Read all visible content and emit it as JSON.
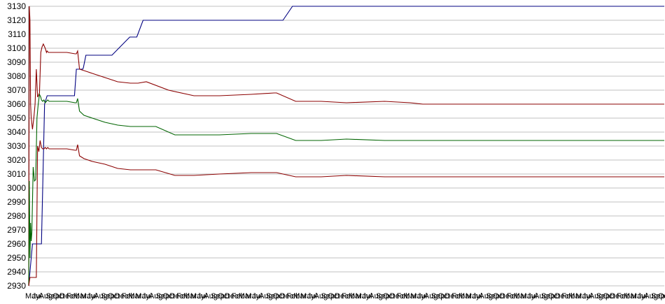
{
  "chart_data": {
    "type": "line",
    "title": "",
    "xlabel": "",
    "ylabel": "",
    "ylim": [
      2930,
      3130
    ],
    "yticks": [
      2930,
      2940,
      2950,
      2960,
      2970,
      2980,
      2990,
      3000,
      3010,
      3020,
      3030,
      3040,
      3050,
      3060,
      3070,
      3080,
      3090,
      3100,
      3110,
      3120,
      3130
    ],
    "grid": true,
    "legend": "none",
    "x_tick_labels": [
      "May",
      "Jul",
      "Aug",
      "Sep",
      "Oct",
      "Dec",
      "Feb",
      "Mar",
      "May",
      "Jul",
      "Aug",
      "Sep",
      "Oct",
      "Dec",
      "Feb",
      "Mar",
      "May",
      "Jul",
      "Aug",
      "Sep",
      "Oct",
      "Dec",
      "Feb",
      "Mar",
      "May",
      "Jul",
      "Aug",
      "Sep",
      "Oct",
      "Dec",
      "Feb",
      "Mar",
      "May",
      "Jul",
      "Aug",
      "Sep",
      "Oct",
      "Dec",
      "Feb",
      "Mar",
      "May",
      "Jul",
      "Aug",
      "Sep",
      "Oct",
      "Dec",
      "Feb",
      "Mar",
      "May",
      "Jul",
      "Aug",
      "Sep",
      "Oct",
      "Dec",
      "Feb",
      "Mar",
      "May",
      "Jul",
      "Aug",
      "Sep",
      "Oct",
      "Dec",
      "Feb",
      "Mar",
      "May",
      "Jul",
      "Aug",
      "Sep",
      "Oct",
      "Dec",
      "Feb",
      "Mar",
      "May",
      "Jul",
      "Aug",
      "Sep",
      "Oct",
      "Dec",
      "Feb",
      "Mar",
      "May",
      "Jul",
      "Aug",
      "Sep",
      "Oct",
      "Dec",
      "Feb",
      "Mar",
      "May",
      "Jul",
      "Aug",
      "Sep",
      "Oct"
    ],
    "series": [
      {
        "color": "#000080",
        "x": [
          0,
          2,
          4,
          6,
          7,
          9,
          10,
          12,
          16,
          20,
          25,
          29,
          35,
          40,
          51,
          52,
          56,
          72,
          75,
          76,
          77,
          80,
          81,
          85,
          86,
          90,
          100,
          131,
          159,
          170,
          180,
          190,
          200,
          280,
          300,
          400,
          415,
          430,
          700,
          741,
          790,
          900,
          1000
        ],
        "y": [
          2930,
          2940,
          2950,
          2960,
          2960,
          2960,
          2960,
          2960,
          2960,
          2960,
          3060,
          3066,
          3066,
          3066,
          3066,
          3066,
          3066,
          3066,
          3085,
          3085,
          3085,
          3085,
          3085,
          3085,
          3086,
          3095,
          3095,
          3095,
          3108,
          3108,
          3120,
          3120,
          3120,
          3120,
          3120,
          3120,
          3130,
          3130,
          3130,
          3130,
          3130,
          3130,
          3130
        ]
      },
      {
        "color": "#8b0000",
        "x": [
          0,
          1,
          2,
          3,
          4,
          6,
          8,
          10,
          12,
          14,
          17,
          19,
          21,
          23,
          26,
          28,
          29,
          31,
          34,
          40,
          60,
          73,
          75,
          77,
          80,
          87,
          100,
          120,
          140,
          160,
          172,
          185,
          220,
          260,
          300,
          350,
          386,
          390,
          420,
          460,
          500,
          560,
          600,
          620,
          650,
          720,
          750,
          760,
          790,
          800,
          820,
          850,
          900,
          920,
          950,
          1000
        ],
        "y": [
          2930,
          3130,
          3120,
          3060,
          3050,
          3042,
          3050,
          3060,
          3085,
          3065,
          3068,
          3097,
          3101,
          3103,
          3100,
          3097,
          3098,
          3097,
          3097,
          3097,
          3097,
          3096,
          3096,
          3098,
          3085,
          3084,
          3082,
          3079,
          3076,
          3075,
          3075,
          3076,
          3070,
          3066,
          3066,
          3067,
          3068,
          3068,
          3062,
          3062,
          3061,
          3062,
          3061,
          3060,
          3060,
          3060,
          3060,
          3060,
          3060,
          3060,
          3060,
          3060,
          3060,
          3060,
          3060,
          3060
        ]
      },
      {
        "color": "#006400",
        "x": [
          0,
          1,
          2,
          3,
          4,
          5,
          7,
          9,
          11,
          13,
          15,
          17,
          19,
          20,
          22,
          24,
          26,
          28,
          30,
          32,
          40,
          60,
          73,
          75,
          77,
          80,
          87,
          100,
          120,
          140,
          160,
          172,
          185,
          200,
          230,
          260,
          300,
          350,
          386,
          390,
          420,
          460,
          500,
          560,
          600,
          620,
          650,
          720,
          750,
          800,
          850,
          900,
          950,
          1000
        ],
        "y": [
          2930,
          3005,
          2950,
          2975,
          2962,
          2968,
          3015,
          3005,
          3006,
          3050,
          3060,
          3067,
          3065,
          3063,
          3062,
          3063,
          3061,
          3062,
          3063,
          3062,
          3062,
          3062,
          3061,
          3061,
          3064,
          3055,
          3052,
          3050,
          3047,
          3045,
          3044,
          3044,
          3044,
          3044,
          3038,
          3038,
          3038,
          3039,
          3039,
          3039,
          3034,
          3034,
          3035,
          3034,
          3034,
          3034,
          3034,
          3034,
          3034,
          3034,
          3034,
          3034,
          3034,
          3034
        ]
      },
      {
        "color": "#8b0000",
        "x": [
          0,
          2,
          4,
          5,
          6,
          8,
          10,
          12,
          14,
          16,
          18,
          20,
          22,
          24,
          26,
          28,
          30,
          32,
          40,
          60,
          73,
          75,
          77,
          80,
          87,
          100,
          120,
          140,
          160,
          172,
          185,
          200,
          230,
          260,
          300,
          350,
          386,
          390,
          420,
          460,
          500,
          560,
          600,
          620,
          650,
          720,
          750,
          800,
          850,
          900,
          950,
          1000
        ],
        "y": [
          2930,
          2936,
          2936,
          2936,
          2936,
          2936,
          2936,
          2936,
          3030,
          3026,
          3034,
          3029,
          3028,
          3028,
          3029,
          3028,
          3029,
          3028,
          3028,
          3028,
          3027,
          3027,
          3031,
          3023,
          3021,
          3019,
          3017,
          3014,
          3013,
          3013,
          3013,
          3013,
          3009,
          3009,
          3010,
          3011,
          3011,
          3011,
          3008,
          3008,
          3009,
          3008,
          3008,
          3008,
          3008,
          3008,
          3008,
          3008,
          3008,
          3008,
          3008,
          3008
        ]
      }
    ]
  }
}
